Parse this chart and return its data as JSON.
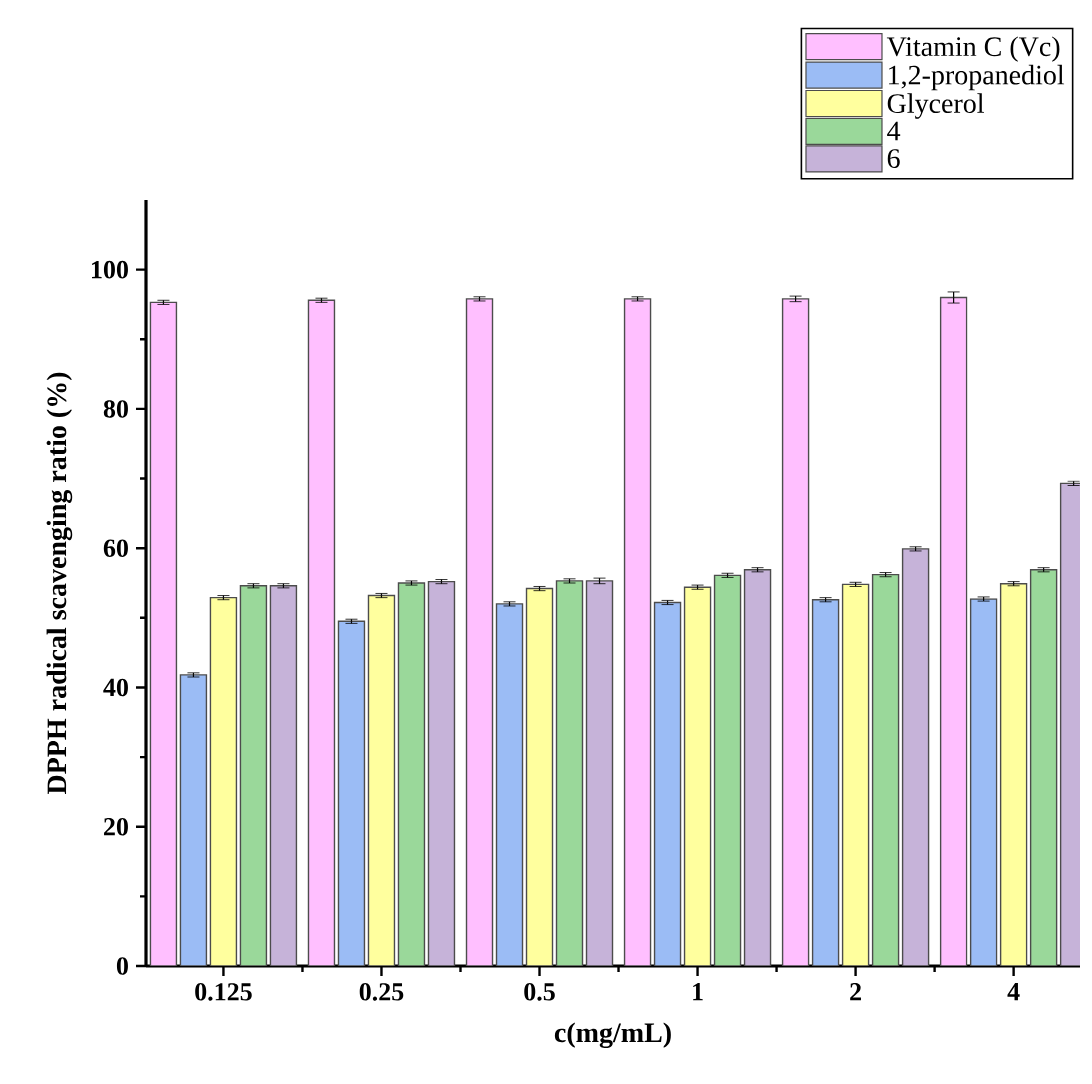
{
  "chart_data": {
    "type": "bar",
    "xlabel": "c(mg/mL)",
    "ylabel": "DPPH radical scavenging ratio (%)",
    "categories": [
      "0.125",
      "0.25",
      "0.5",
      "1",
      "2",
      "4"
    ],
    "series": [
      {
        "name": "Vitamin C (Vc)",
        "color": "#ffbfff",
        "values": [
          95.3,
          95.6,
          95.8,
          95.8,
          95.8,
          96.0
        ],
        "errors": [
          0.3,
          0.3,
          0.3,
          0.3,
          0.4,
          0.8
        ]
      },
      {
        "name": "1,2-propanediol",
        "color": "#9bbcf5",
        "values": [
          41.8,
          49.5,
          52.0,
          52.2,
          52.6,
          52.7
        ],
        "errors": [
          0.3,
          0.3,
          0.3,
          0.3,
          0.3,
          0.3
        ]
      },
      {
        "name": "Glycerol",
        "color": "#ffff9e",
        "values": [
          52.9,
          53.2,
          54.2,
          54.4,
          54.8,
          54.9
        ],
        "errors": [
          0.3,
          0.3,
          0.3,
          0.3,
          0.3,
          0.3
        ]
      },
      {
        "name": "4",
        "color": "#9ad89a",
        "values": [
          54.6,
          55.0,
          55.3,
          56.1,
          56.2,
          56.9
        ],
        "errors": [
          0.3,
          0.3,
          0.3,
          0.3,
          0.3,
          0.3
        ]
      },
      {
        "name": "6",
        "color": "#c6b3d9",
        "values": [
          54.6,
          55.2,
          55.3,
          56.9,
          59.9,
          69.3
        ],
        "errors": [
          0.3,
          0.3,
          0.4,
          0.3,
          0.3,
          0.3
        ]
      }
    ],
    "ylim": [
      0,
      110
    ],
    "yticks": [
      0,
      20,
      40,
      60,
      80,
      100
    ],
    "legend": "top right",
    "grid": false
  }
}
